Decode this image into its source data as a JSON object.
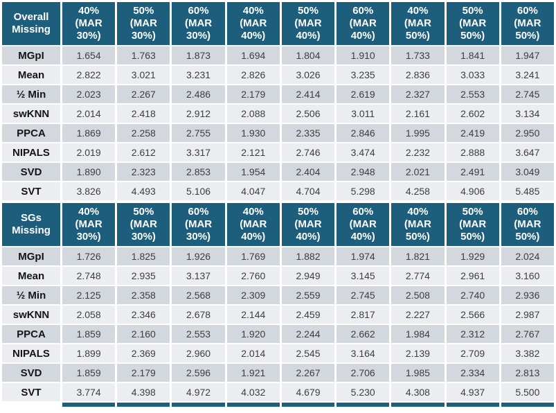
{
  "colors": {
    "header_bg": "#1D5E7D",
    "row_dark": "#D3D7DE",
    "row_light": "#EBEDF1",
    "label_color": "#141414",
    "value_color": "#3D3D3D"
  },
  "chart_data": [
    {
      "type": "table",
      "title": "Overall Missing",
      "columns": [
        "40% (MAR 30%)",
        "50% (MAR 30%)",
        "60% (MAR 30%)",
        "40% (MAR 40%)",
        "50% (MAR 40%)",
        "60% (MAR 40%)",
        "40% (MAR 50%)",
        "50% (MAR 50%)",
        "60% (MAR 50%)"
      ],
      "rows": [
        {
          "label": "MGpI",
          "values": [
            "1.654",
            "1.763",
            "1.873",
            "1.694",
            "1.804",
            "1.910",
            "1.733",
            "1.841",
            "1.947"
          ]
        },
        {
          "label": "Mean",
          "values": [
            "2.822",
            "3.021",
            "3.231",
            "2.826",
            "3.026",
            "3.235",
            "2.836",
            "3.033",
            "3.241"
          ]
        },
        {
          "label": "½ Min",
          "values": [
            "2.023",
            "2.267",
            "2.486",
            "2.179",
            "2.414",
            "2.619",
            "2.327",
            "2.553",
            "2.745"
          ]
        },
        {
          "label": "swKNN",
          "values": [
            "2.014",
            "2.418",
            "2.912",
            "2.088",
            "2.506",
            "3.011",
            "2.161",
            "2.602",
            "3.134"
          ]
        },
        {
          "label": "PPCA",
          "values": [
            "1.869",
            "2.258",
            "2.755",
            "1.930",
            "2.335",
            "2.846",
            "1.995",
            "2.419",
            "2.950"
          ]
        },
        {
          "label": "NIPALS",
          "values": [
            "2.019",
            "2.612",
            "3.317",
            "2.121",
            "2.746",
            "3.474",
            "2.232",
            "2.888",
            "3.647"
          ]
        },
        {
          "label": "SVD",
          "values": [
            "1.890",
            "2.323",
            "2.853",
            "1.954",
            "2.404",
            "2.948",
            "2.021",
            "2.491",
            "3.049"
          ]
        },
        {
          "label": "SVT",
          "values": [
            "3.826",
            "4.493",
            "5.106",
            "4.047",
            "4.704",
            "5.298",
            "4.258",
            "4.906",
            "5.485"
          ]
        }
      ]
    },
    {
      "type": "table",
      "title": "SGs Missing",
      "columns": [
        "40% (MAR 30%)",
        "50% (MAR 30%)",
        "60% (MAR 30%)",
        "40% (MAR 40%)",
        "50% (MAR 40%)",
        "60% (MAR 40%)",
        "40% (MAR 50%)",
        "50% (MAR 50%)",
        "60% (MAR 50%)"
      ],
      "rows": [
        {
          "label": "MGpI",
          "values": [
            "1.726",
            "1.825",
            "1.926",
            "1.769",
            "1.882",
            "1.974",
            "1.821",
            "1.929",
            "2.024"
          ]
        },
        {
          "label": "Mean",
          "values": [
            "2.748",
            "2.935",
            "3.137",
            "2.760",
            "2.949",
            "3.145",
            "2.774",
            "2.961",
            "3.160"
          ]
        },
        {
          "label": "½ Min",
          "values": [
            "2.125",
            "2.358",
            "2.568",
            "2.309",
            "2.559",
            "2.745",
            "2.508",
            "2.740",
            "2.936"
          ]
        },
        {
          "label": "swKNN",
          "values": [
            "2.058",
            "2.346",
            "2.678",
            "2.144",
            "2.459",
            "2.817",
            "2.227",
            "2.566",
            "2.987"
          ]
        },
        {
          "label": "PPCA",
          "values": [
            "1.859",
            "2.160",
            "2.553",
            "1.920",
            "2.244",
            "2.662",
            "1.984",
            "2.312",
            "2.767"
          ]
        },
        {
          "label": "NIPALS",
          "values": [
            "1.899",
            "2.369",
            "2.960",
            "2.014",
            "2.545",
            "3.164",
            "2.139",
            "2.709",
            "3.382"
          ]
        },
        {
          "label": "SVD",
          "values": [
            "1.859",
            "2.179",
            "2.596",
            "1.921",
            "2.267",
            "2.706",
            "1.985",
            "2.334",
            "2.813"
          ]
        },
        {
          "label": "SVT",
          "values": [
            "3.774",
            "4.398",
            "4.972",
            "4.032",
            "4.679",
            "5.230",
            "4.308",
            "4.937",
            "5.500"
          ]
        }
      ]
    }
  ],
  "cropped_next_header": {
    "cell_count": 9
  }
}
